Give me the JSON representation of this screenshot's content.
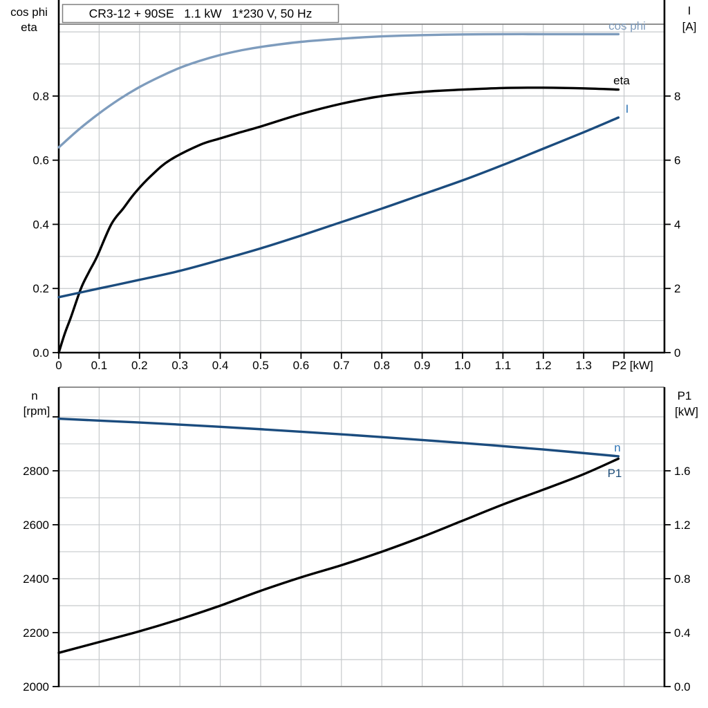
{
  "page": {
    "background": "#ffffff"
  },
  "title_box": {
    "text": "CR3-12 + 90SE   1.1 kW   1*230 V, 50 Hz"
  },
  "colors": {
    "light_blue": "#7e9cbd",
    "dark_blue": "#1b4c7e",
    "black": "#000000",
    "label_blue": "#2e74b5",
    "p1_label_blue": "#1f4e79",
    "grid": "#c6c9cc",
    "frame": "#7f7f7f",
    "text": "#000000"
  },
  "chart_data": [
    {
      "id": "top",
      "type": "line",
      "title": "CR3-12 + 90SE   1.1 kW   1*230 V, 50 Hz",
      "grid": true,
      "legend_position": "curve-end-labels",
      "x_axis": {
        "label": "P2 [kW]",
        "range": [
          0,
          1.5
        ],
        "tick_values": [
          0,
          0.1,
          0.2,
          0.3,
          0.4,
          0.5,
          0.6,
          0.7,
          0.8,
          0.9,
          1.0,
          1.1,
          1.2,
          1.3
        ],
        "tick_labels": [
          "0",
          "0.1",
          "0.2",
          "0.3",
          "0.4",
          "0.5",
          "0.6",
          "0.7",
          "0.8",
          "0.9",
          "1.0",
          "1.1",
          "1.2",
          "1.3"
        ],
        "unlabeled_tick_values": [
          1.4
        ],
        "grid_values": [
          0.1,
          0.2,
          0.3,
          0.4,
          0.5,
          0.6,
          0.7,
          0.8,
          0.9,
          1.0,
          1.1,
          1.2,
          1.3,
          1.4
        ]
      },
      "left_axis": {
        "label_lines": [
          "cos phi",
          "eta"
        ],
        "range": [
          0,
          1.024
        ],
        "tick_values": [
          0.0,
          0.2,
          0.4,
          0.6,
          0.8
        ],
        "tick_labels": [
          "0.0",
          "0.2",
          "0.4",
          "0.6",
          "0.8"
        ],
        "grid_values": [
          0.1,
          0.2,
          0.3,
          0.4,
          0.5,
          0.6,
          0.7,
          0.8,
          0.9,
          1.0
        ]
      },
      "right_axis": {
        "label_lines": [
          "I",
          "[A]"
        ],
        "range": [
          0,
          10.24
        ],
        "tick_values": [
          0,
          2,
          4,
          6,
          8
        ],
        "tick_labels": [
          "0",
          "2",
          "4",
          "6",
          "8"
        ]
      },
      "series": [
        {
          "name": "cos-phi",
          "label": "cos phi",
          "axis": "left",
          "color": "light_blue",
          "label_color": "light_blue",
          "x": [
            0,
            0.05,
            0.1,
            0.15,
            0.2,
            0.25,
            0.3,
            0.35,
            0.4,
            0.45,
            0.5,
            0.6,
            0.7,
            0.8,
            0.9,
            1.0,
            1.1,
            1.2,
            1.3,
            1.386
          ],
          "values": [
            0.64,
            0.696,
            0.746,
            0.79,
            0.828,
            0.86,
            0.888,
            0.91,
            0.928,
            0.942,
            0.953,
            0.969,
            0.979,
            0.986,
            0.99,
            0.992,
            0.993,
            0.993,
            0.993,
            0.993
          ]
        },
        {
          "name": "eta",
          "label": "eta",
          "axis": "left",
          "color": "black",
          "label_color": "black",
          "x": [
            0,
            0.015,
            0.03,
            0.055,
            0.075,
            0.095,
            0.13,
            0.16,
            0.19,
            0.23,
            0.275,
            0.35,
            0.4,
            0.45,
            0.5,
            0.6,
            0.7,
            0.8,
            0.9,
            1.0,
            1.1,
            1.2,
            1.3,
            1.386
          ],
          "values": [
            0,
            0.06,
            0.11,
            0.2,
            0.252,
            0.3,
            0.4,
            0.45,
            0.5,
            0.553,
            0.6,
            0.648,
            0.668,
            0.687,
            0.705,
            0.744,
            0.776,
            0.8,
            0.813,
            0.82,
            0.825,
            0.826,
            0.824,
            0.82
          ]
        },
        {
          "name": "i",
          "label": "I",
          "axis": "right",
          "color": "dark_blue",
          "label_color": "label_blue",
          "x": [
            0,
            0.1,
            0.2,
            0.3,
            0.4,
            0.5,
            0.6,
            0.7,
            0.8,
            0.9,
            1.0,
            1.1,
            1.2,
            1.3,
            1.386
          ],
          "values": [
            1.73,
            2.0,
            2.27,
            2.55,
            2.89,
            3.25,
            3.65,
            4.07,
            4.49,
            4.93,
            5.37,
            5.85,
            6.36,
            6.87,
            7.33
          ]
        }
      ]
    },
    {
      "id": "bottom",
      "type": "line",
      "title": "",
      "grid": true,
      "legend_position": "curve-end-labels",
      "x_axis": {
        "label": "",
        "range": [
          0,
          1.5
        ],
        "tick_values": [],
        "tick_labels": [],
        "unlabeled_tick_values": [],
        "grid_values": [
          0.1,
          0.2,
          0.3,
          0.4,
          0.5,
          0.6,
          0.7,
          0.8,
          0.9,
          1.0,
          1.1,
          1.2,
          1.3,
          1.4
        ]
      },
      "left_axis": {
        "label_lines": [
          "n",
          "[rpm]"
        ],
        "range": [
          2000,
          3110
        ],
        "tick_values": [
          2000,
          2200,
          2400,
          2600,
          2800,
          3000
        ],
        "tick_labels": [
          "2000",
          "2200",
          "2400",
          "2600",
          "2800",
          ""
        ],
        "grid_values": [
          2100,
          2200,
          2300,
          2400,
          2500,
          2600,
          2700,
          2800,
          2900,
          3000
        ]
      },
      "right_axis": {
        "label_lines": [
          "P1",
          "[kW]"
        ],
        "range": [
          0,
          2.22
        ],
        "tick_values": [
          0.0,
          0.4,
          0.8,
          1.2,
          1.6
        ],
        "tick_labels": [
          "0.0",
          "0.4",
          "0.8",
          "1.2",
          "1.6"
        ]
      },
      "series": [
        {
          "name": "n",
          "label": "n",
          "axis": "left",
          "color": "dark_blue",
          "label_color": "label_blue",
          "x": [
            0,
            0.2,
            0.4,
            0.6,
            0.8,
            1.0,
            1.2,
            1.386
          ],
          "values": [
            2993,
            2979,
            2963,
            2945,
            2925,
            2903,
            2879,
            2854
          ]
        },
        {
          "name": "p1",
          "label": "P1",
          "axis": "right",
          "color": "black",
          "label_color": "p1_label_blue",
          "x": [
            0,
            0.1,
            0.2,
            0.3,
            0.4,
            0.5,
            0.6,
            0.7,
            0.8,
            0.9,
            1.0,
            1.1,
            1.2,
            1.3,
            1.386
          ],
          "values": [
            0.25,
            0.33,
            0.41,
            0.5,
            0.6,
            0.71,
            0.81,
            0.9,
            1.0,
            1.11,
            1.23,
            1.35,
            1.46,
            1.575,
            1.69
          ]
        }
      ]
    }
  ]
}
